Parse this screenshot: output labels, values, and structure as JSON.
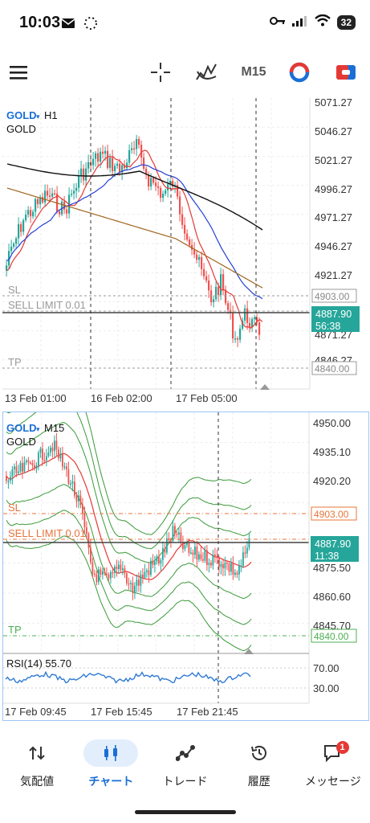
{
  "status_bar": {
    "time": "10:03",
    "battery": "32"
  },
  "toolbar": {
    "timeframe": "M15"
  },
  "chart_h1": {
    "symbol": "GOLD",
    "timeframe": "H1",
    "description": "GOLD",
    "price_ticks": [
      "5071.27",
      "5046.27",
      "5021.27",
      "4996.27",
      "4971.27",
      "4946.27",
      "4921.27",
      "4871.27",
      "4846.27"
    ],
    "sl_label": "SL",
    "sl_price": "4903.00",
    "sell_limit_label": "SELL LIMIT 0.01",
    "current_price": "4887.90",
    "countdown": "56:38",
    "tp_label": "TP",
    "tp_price": "4840.00",
    "time_labels": [
      "13 Feb 01:00",
      "16 Feb 02:00",
      "17 Feb 05:00"
    ]
  },
  "chart_m15": {
    "symbol": "GOLD",
    "timeframe": "M15",
    "description": "GOLD",
    "price_ticks": [
      "4950.00",
      "4935.10",
      "4920.20",
      "4875.50",
      "4860.60",
      "4845.70"
    ],
    "sl_label": "SL",
    "sl_price": "4903.00",
    "sell_limit_label": "SELL LIMIT 0.01",
    "current_price": "4887.90",
    "countdown": "11:38",
    "tp_label": "TP",
    "tp_price": "4840.00",
    "rsi_label": "RSI(14) 55.70",
    "rsi_ticks": [
      "70.00",
      "30.00"
    ],
    "time_labels": [
      "17 Feb 09:45",
      "17 Feb 15:45",
      "17 Feb 21:45"
    ]
  },
  "nav": {
    "items": [
      {
        "label": "気配値",
        "icon": "quotes-arrows-icon"
      },
      {
        "label": "チャート",
        "icon": "candlestick-chart-icon"
      },
      {
        "label": "トレード",
        "icon": "trade-line-icon"
      },
      {
        "label": "履歴",
        "icon": "history-clock-icon"
      },
      {
        "label": "メッセージ",
        "icon": "message-icon"
      }
    ],
    "message_badge": "1"
  },
  "colors": {
    "bull": "#26a69a",
    "bear": "#ef5350",
    "accent": "#1a6fd6",
    "sl_line": "#e8743b",
    "tp_line": "#4caf50"
  }
}
